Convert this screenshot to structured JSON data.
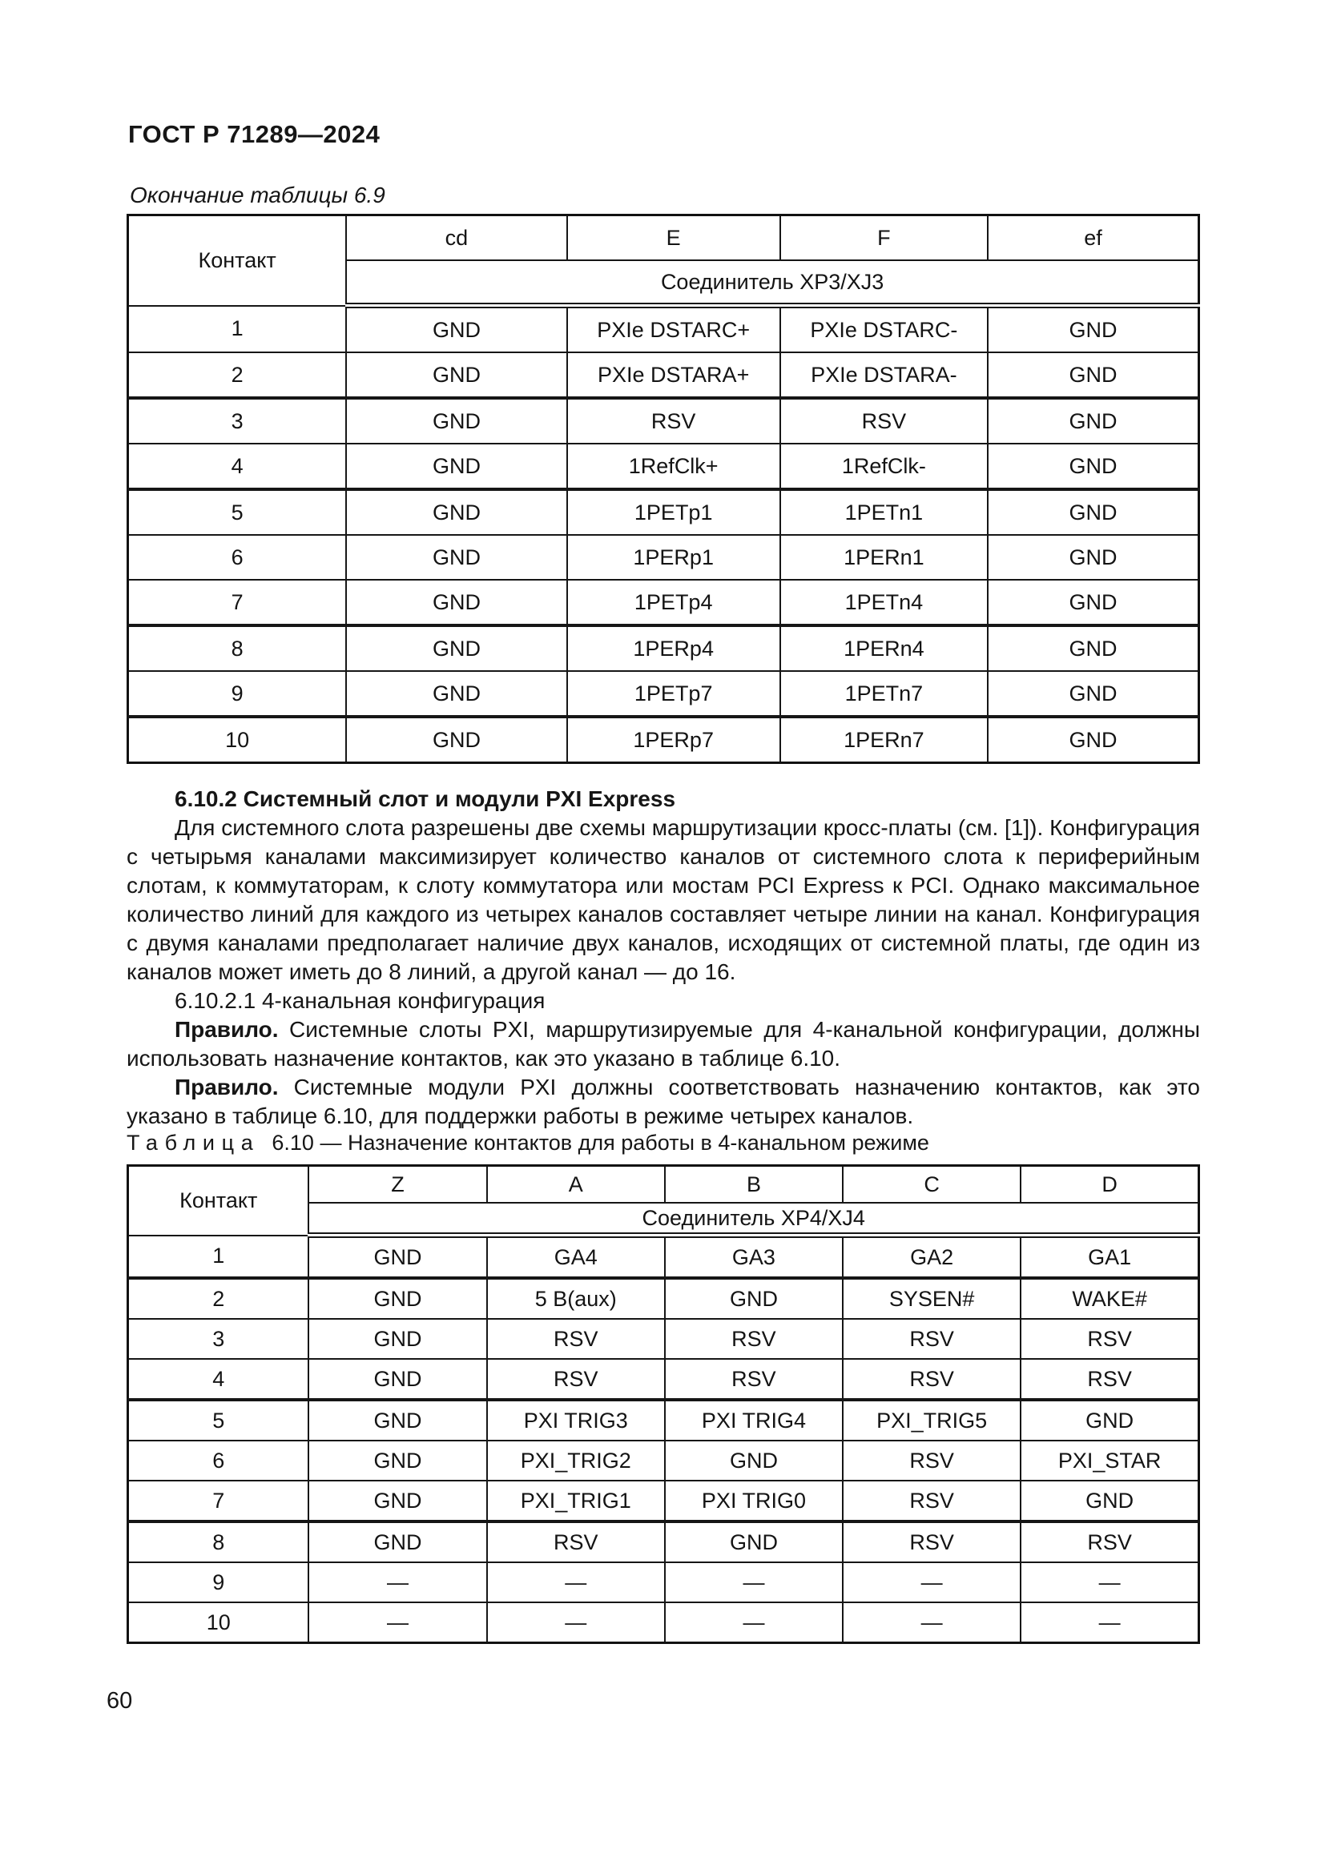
{
  "page": {
    "header": "ГОСТ Р 71289—2024",
    "page_number": "60"
  },
  "table_69": {
    "continuation_caption": "Окончание таблицы 6.9",
    "col_contact": "Контакт",
    "col_headers": [
      "cd",
      "E",
      "F",
      "ef"
    ],
    "connector_header": "Соединитель XP3/XJ3",
    "thick_rules_after": [
      2,
      4,
      7,
      9
    ],
    "rows": [
      [
        "1",
        "GND",
        "PXIe DSTARC+",
        "PXIe DSTARC-",
        "GND"
      ],
      [
        "2",
        "GND",
        "PXIe DSTARA+",
        "PXIe DSTARA-",
        "GND"
      ],
      [
        "3",
        "GND",
        "RSV",
        "RSV",
        "GND"
      ],
      [
        "4",
        "GND",
        "1RefClk+",
        "1RefClk-",
        "GND"
      ],
      [
        "5",
        "GND",
        "1PETp1",
        "1PETn1",
        "GND"
      ],
      [
        "6",
        "GND",
        "1PERp1",
        "1PERn1",
        "GND"
      ],
      [
        "7",
        "GND",
        "1PETp4",
        "1PETn4",
        "GND"
      ],
      [
        "8",
        "GND",
        "1PERp4",
        "1PERn4",
        "GND"
      ],
      [
        "9",
        "GND",
        "1PETp7",
        "1PETn7",
        "GND"
      ],
      [
        "10",
        "GND",
        "1PERp7",
        "1PERn7",
        "GND"
      ]
    ]
  },
  "section": {
    "heading": "6.10.2 Системный слот и модули PXI Express",
    "paragraph": "Для системного слота разрешены две схемы маршрутизации кросс-платы (см. [1]). Конфигурация с четырьмя каналами максимизирует количество каналов от системного слота к периферийным слотам, к коммутаторам, к слоту коммутатора или мостам PCI Express к PCI. Однако максимальное количество линий для каждого из четырех каналов составляет четыре линии на канал. Конфигурация с двумя каналами предполагает наличие двух каналов, исходящих от системной платы, где один из каналов может иметь до 8 линий, а другой канал — до 16.",
    "subheading": "6.10.2.1 4-канальная конфигурация",
    "rule1": {
      "lead": "Правило.",
      "text": "Системные слоты PXI, маршрутизируемые для 4-канальной конфигурации, должны использовать назначение контактов, как это указано в таблице 6.10."
    },
    "rule2": {
      "lead": "Правило.",
      "text": "Системные модули PXI должны соответствовать назначению контактов, как это указано в таблице 6.10, для поддержки работы в режиме четырех каналов."
    }
  },
  "table_610": {
    "caption_label": "Таблица",
    "caption_number": "6.10",
    "caption_dash": "—",
    "caption_title": "Назначение контактов для работы в 4-канальном режиме",
    "col_contact": "Контакт",
    "col_headers": [
      "Z",
      "A",
      "B",
      "C",
      "D"
    ],
    "connector_header": "Соединитель XP4/XJ4",
    "thick_rules_after": [
      1,
      4,
      7
    ],
    "rows": [
      [
        "1",
        "GND",
        "GA4",
        "GA3",
        "GA2",
        "GA1"
      ],
      [
        "2",
        "GND",
        "5 B(aux)",
        "GND",
        "SYSEN#",
        "WAKE#"
      ],
      [
        "3",
        "GND",
        "RSV",
        "RSV",
        "RSV",
        "RSV"
      ],
      [
        "4",
        "GND",
        "RSV",
        "RSV",
        "RSV",
        "RSV"
      ],
      [
        "5",
        "GND",
        "PXI TRIG3",
        "PXI TRIG4",
        "PXI_TRIG5",
        "GND"
      ],
      [
        "6",
        "GND",
        "PXI_TRIG2",
        "GND",
        "RSV",
        "PXI_STAR"
      ],
      [
        "7",
        "GND",
        "PXI_TRIG1",
        "PXI TRIG0",
        "RSV",
        "GND"
      ],
      [
        "8",
        "GND",
        "RSV",
        "GND",
        "RSV",
        "RSV"
      ],
      [
        "9",
        "—",
        "—",
        "—",
        "—",
        "—"
      ],
      [
        "10",
        "—",
        "—",
        "—",
        "—",
        "—"
      ]
    ]
  }
}
